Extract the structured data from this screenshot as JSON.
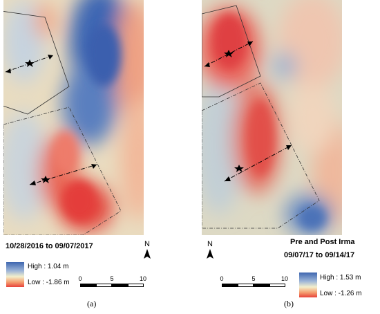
{
  "panel_a": {
    "date_range": "10/28/2016 to 09/07/2017",
    "north": "N",
    "legend": {
      "high": "High : 1.04 m",
      "low": "Low : -1.86 m"
    },
    "scale_ticks": [
      "0",
      "5",
      "10"
    ],
    "label": "(a)"
  },
  "panel_b": {
    "event_title": "Pre and Post Irma",
    "date_range": "09/07/17 to 09/14/17",
    "north": "N",
    "legend": {
      "high": "High : 1.53 m",
      "low": "Low : -1.26 m"
    },
    "scale_ticks": [
      "0",
      "5",
      "10"
    ],
    "label": "(b)"
  },
  "colors": {
    "high": "#3f67b0",
    "mid": "#f3efcc",
    "low": "#e8433a"
  }
}
